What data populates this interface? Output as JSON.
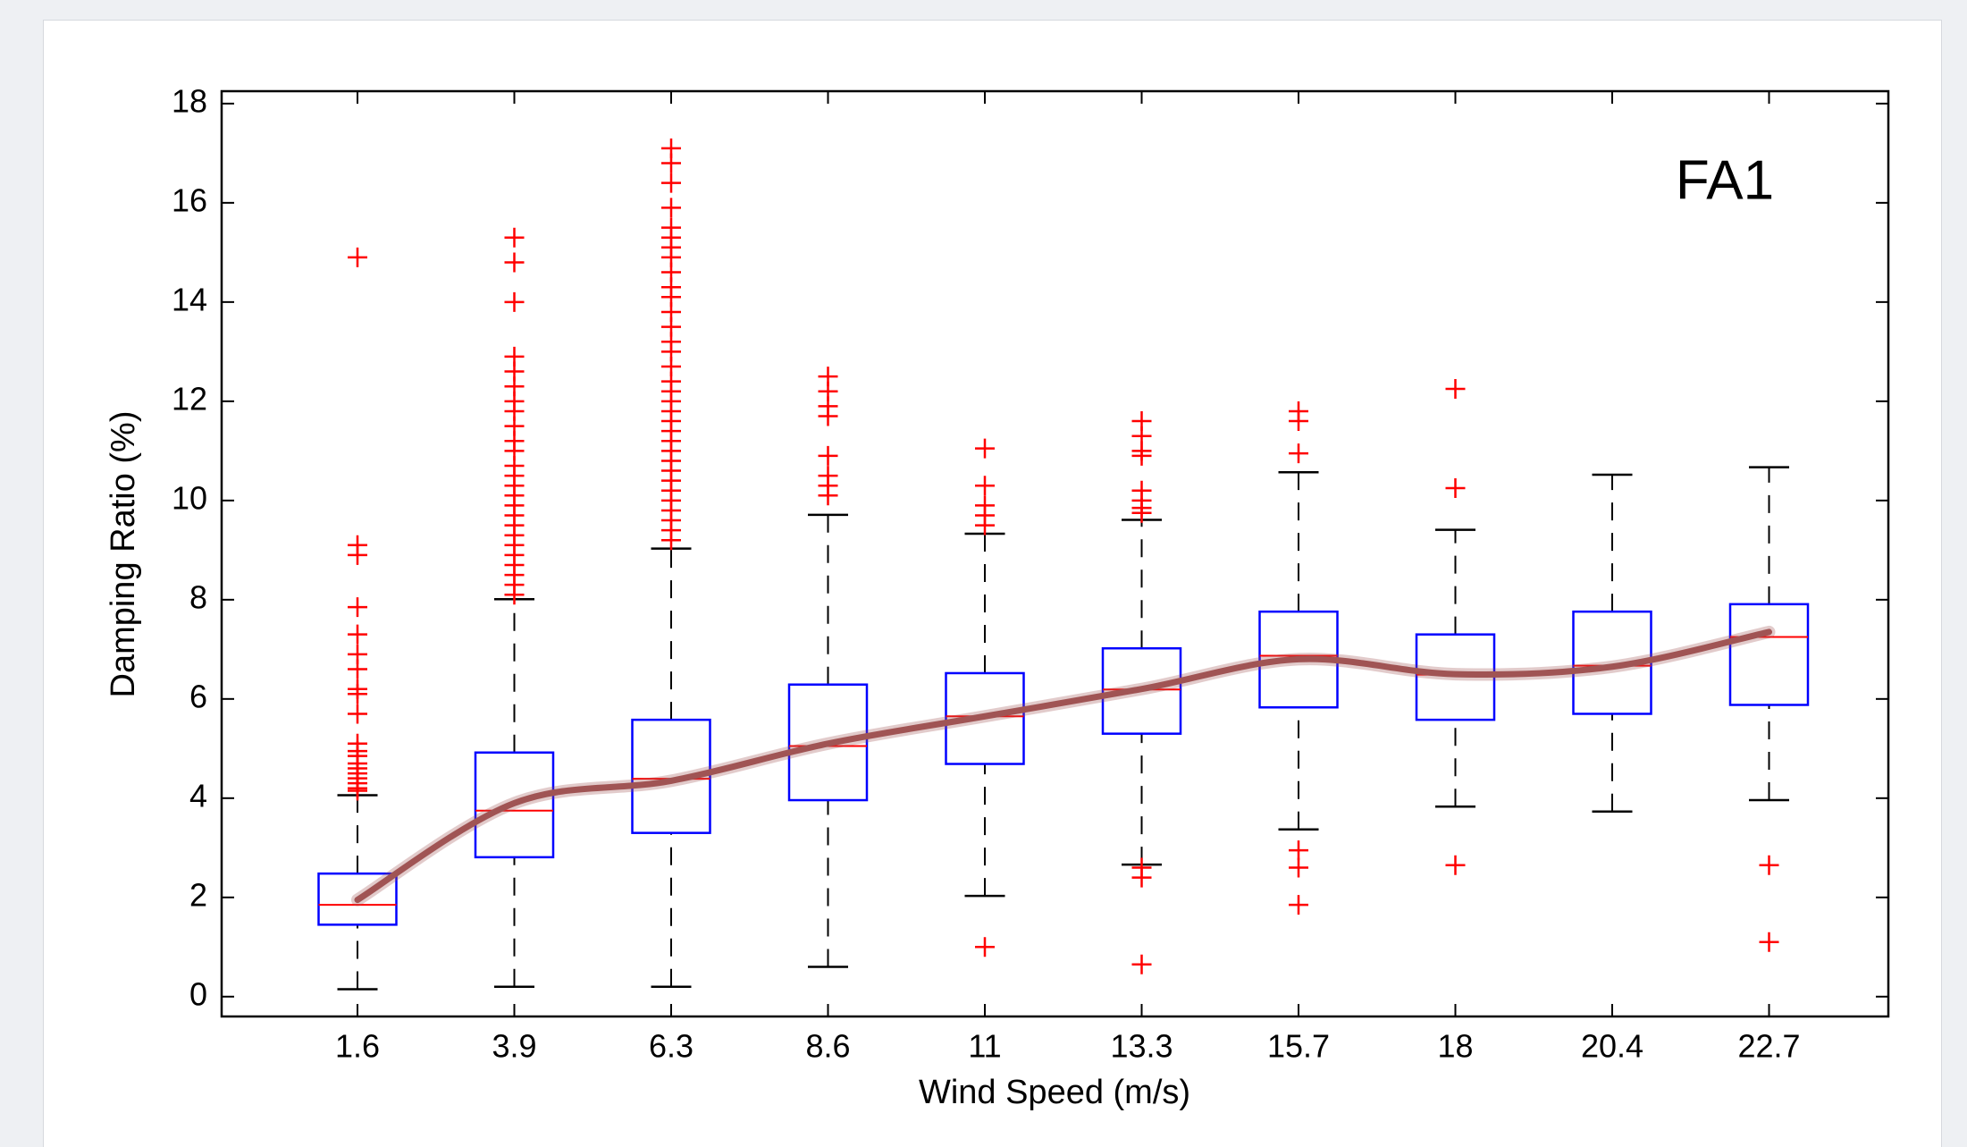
{
  "chart_data": {
    "type": "box",
    "annotation": "FA1",
    "xlabel": "Wind Speed (m/s)",
    "ylabel": "Damping Ratio (%)",
    "categories": [
      "1.6",
      "3.9",
      "6.3",
      "8.6",
      "11",
      "13.3",
      "15.7",
      "18",
      "20.4",
      "22.7"
    ],
    "boxes": [
      {
        "whislo": 0.15,
        "q1": 1.45,
        "median": 1.85,
        "q3": 2.48,
        "whishi": 4.06,
        "fliers": [
          14.9,
          9.1,
          8.9,
          7.85,
          7.3,
          6.9,
          6.6,
          6.2,
          6.1,
          5.7,
          5.1,
          4.95,
          4.85,
          4.7,
          4.6,
          4.5,
          4.4,
          4.3,
          4.2,
          4.15
        ]
      },
      {
        "whislo": 0.2,
        "q1": 2.81,
        "median": 3.75,
        "q3": 4.92,
        "whishi": 8.01,
        "fliers": [
          15.3,
          14.8,
          14.0,
          12.9,
          12.6,
          12.3,
          12.0,
          11.8,
          11.5,
          11.2,
          11.0,
          10.7,
          10.5,
          10.3,
          10.1,
          9.9,
          9.7,
          9.5,
          9.3,
          9.1,
          8.9,
          8.7,
          8.5,
          8.3,
          8.1
        ]
      },
      {
        "whislo": 0.2,
        "q1": 3.3,
        "median": 4.39,
        "q3": 5.58,
        "whishi": 9.03,
        "fliers": [
          17.1,
          16.8,
          16.4,
          15.9,
          15.5,
          15.3,
          15.1,
          14.9,
          14.6,
          14.3,
          14.1,
          13.8,
          13.5,
          13.2,
          13.0,
          12.7,
          12.4,
          12.2,
          12.0,
          11.8,
          11.6,
          11.4,
          11.2,
          11.0,
          10.8,
          10.6,
          10.4,
          10.2,
          10.0,
          9.8,
          9.6,
          9.4,
          9.2
        ]
      },
      {
        "whislo": 0.6,
        "q1": 3.96,
        "median": 5.05,
        "q3": 6.29,
        "whishi": 9.71,
        "fliers": [
          12.5,
          12.2,
          11.9,
          11.7,
          10.9,
          10.5,
          10.3,
          10.1
        ]
      },
      {
        "whislo": 2.03,
        "q1": 4.69,
        "median": 5.65,
        "q3": 6.52,
        "whishi": 9.33,
        "fliers": [
          11.05,
          10.3,
          9.9,
          9.7,
          9.5,
          1.0
        ]
      },
      {
        "whislo": 2.66,
        "q1": 5.3,
        "median": 6.19,
        "q3": 7.02,
        "whishi": 9.61,
        "fliers": [
          11.6,
          11.3,
          11.0,
          10.9,
          10.2,
          10.0,
          9.85,
          9.75,
          2.6,
          2.4,
          0.65
        ]
      },
      {
        "whislo": 3.37,
        "q1": 5.83,
        "median": 6.87,
        "q3": 7.76,
        "whishi": 10.57,
        "fliers": [
          11.8,
          11.6,
          10.95,
          2.95,
          2.6,
          1.85
        ]
      },
      {
        "whislo": 3.83,
        "q1": 5.58,
        "median": 6.49,
        "q3": 7.3,
        "whishi": 9.41,
        "fliers": [
          12.25,
          10.25,
          2.65
        ]
      },
      {
        "whislo": 3.73,
        "q1": 5.7,
        "median": 6.67,
        "q3": 7.76,
        "whishi": 10.52,
        "fliers": []
      },
      {
        "whislo": 3.96,
        "q1": 5.88,
        "median": 7.25,
        "q3": 7.91,
        "whishi": 10.67,
        "fliers": [
          2.65,
          1.1
        ]
      }
    ],
    "trend": {
      "color": "#a05454",
      "values": [
        1.95,
        3.9,
        4.35,
        5.1,
        5.65,
        6.2,
        6.8,
        6.5,
        6.65,
        7.35
      ]
    },
    "box_color": "#0000ff",
    "median_color": "#ff0000",
    "whisker_color": "#000000",
    "flier_color": "#ff0000",
    "annotation_color": "#7b1a1a",
    "ylim": [
      -0.4,
      18.25
    ],
    "yticks": [
      0,
      2,
      4,
      6,
      8,
      10,
      12,
      14,
      16,
      18
    ]
  }
}
